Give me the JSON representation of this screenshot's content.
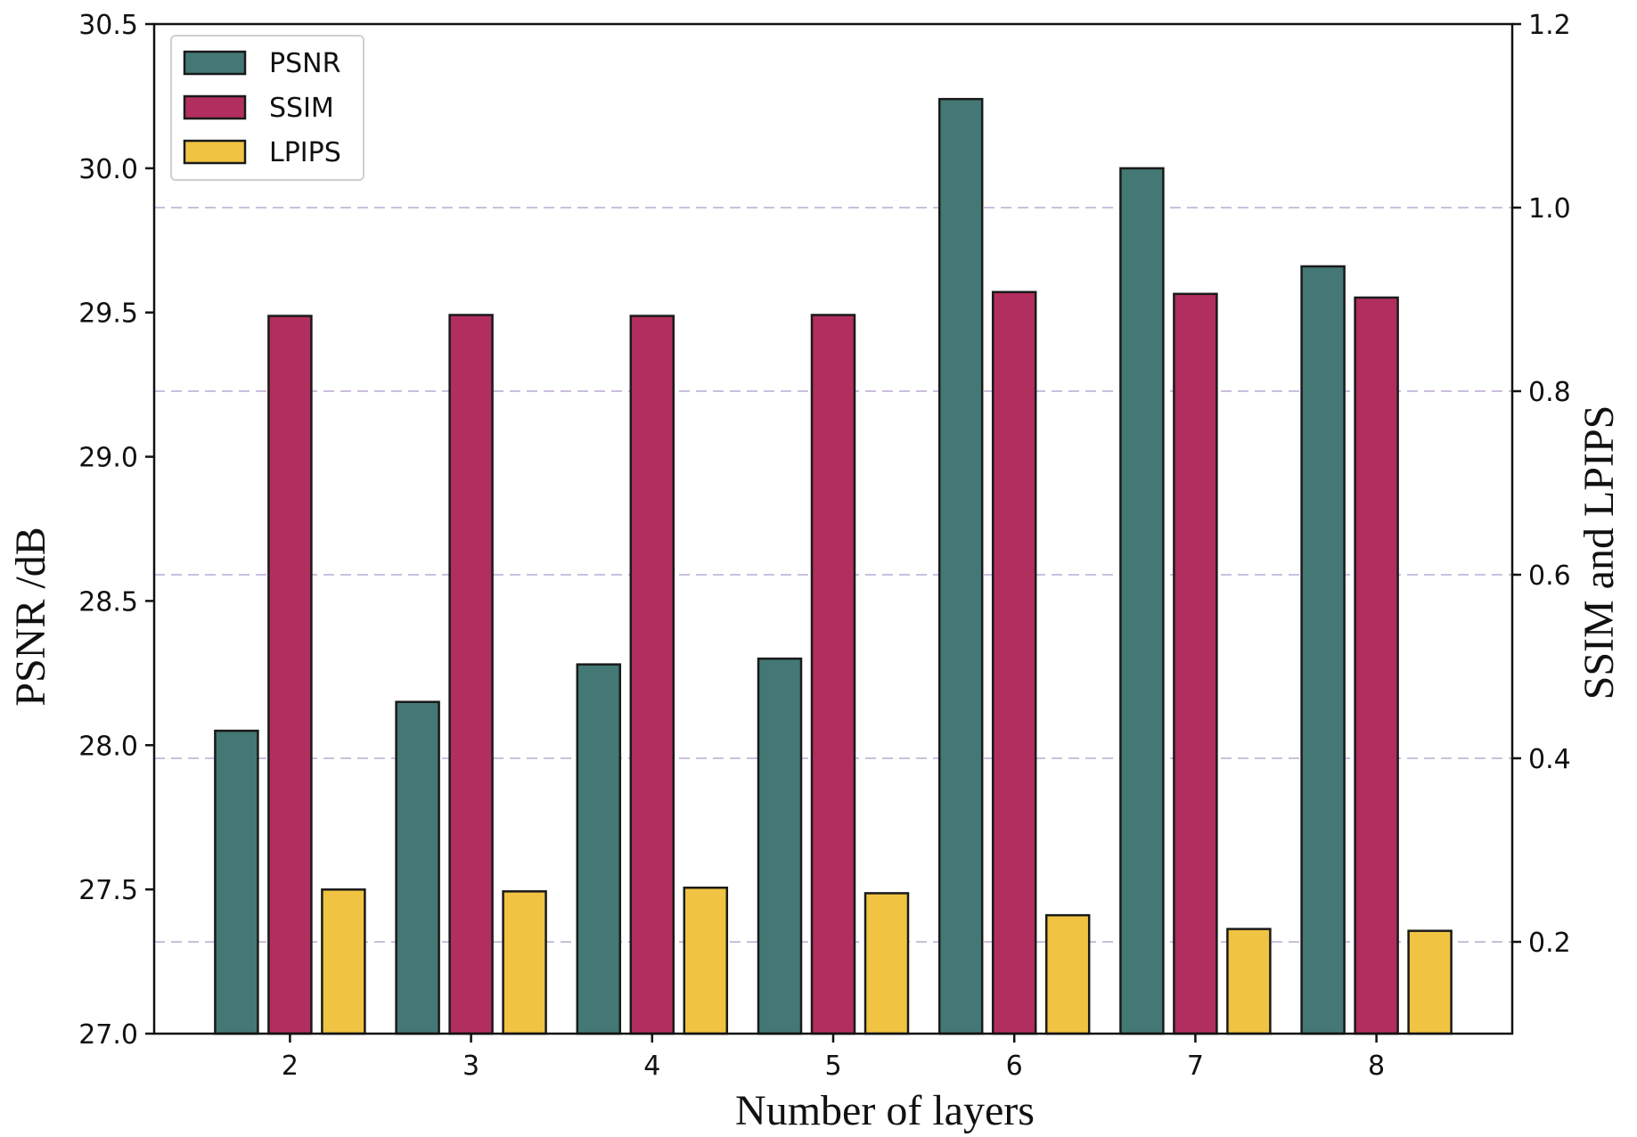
{
  "chart_data": {
    "type": "bar",
    "title": "",
    "xlabel": "Number of layers",
    "ylabel_left": "PSNR /dB",
    "ylabel_right": "SSIM and LPIPS",
    "categories": [
      "2",
      "3",
      "4",
      "5",
      "6",
      "7",
      "8"
    ],
    "ylim_left": [
      27.0,
      30.5
    ],
    "yticks_left": [
      "27.0",
      "27.5",
      "28.0",
      "28.5",
      "29.0",
      "29.5",
      "30.0",
      "30.5"
    ],
    "ylim_right": [
      0.1,
      1.2
    ],
    "yticks_right": [
      "0.2",
      "0.4",
      "0.6",
      "0.8",
      "1.0",
      "1.2"
    ],
    "grid": "right-axis horizontal dashed",
    "legend_position": "top-left",
    "series": [
      {
        "name": "PSNR",
        "axis": "left",
        "color": "#437874",
        "values": [
          28.05,
          28.15,
          28.28,
          28.3,
          30.24,
          30.0,
          29.66
        ]
      },
      {
        "name": "SSIM",
        "axis": "right",
        "color": "#b12e5e",
        "values": [
          0.882,
          0.883,
          0.882,
          0.883,
          0.908,
          0.906,
          0.902
        ]
      },
      {
        "name": "LPIPS",
        "axis": "right",
        "color": "#f0c442",
        "values": [
          0.257,
          0.255,
          0.259,
          0.253,
          0.229,
          0.214,
          0.212
        ]
      }
    ]
  }
}
